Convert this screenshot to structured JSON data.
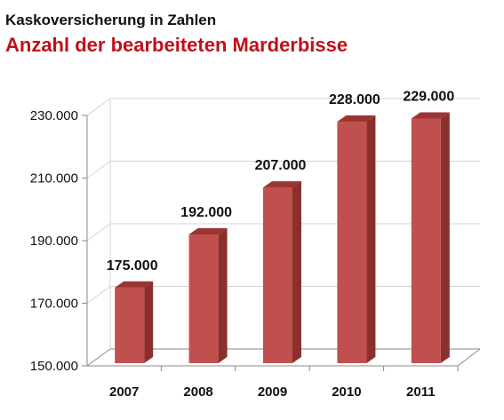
{
  "chart_data": {
    "type": "bar",
    "supertitle": "Kaskoversicherung in Zahlen",
    "title": "Anzahl der bearbeiteten Marderbisse",
    "categories": [
      "2007",
      "2008",
      "2009",
      "2010",
      "2011"
    ],
    "values": [
      175000,
      192000,
      207000,
      228000,
      229000
    ],
    "data_labels": [
      "175.000",
      "192.000",
      "207.000",
      "228.000",
      "229.000"
    ],
    "yticks": [
      150000,
      170000,
      190000,
      210000,
      230000
    ],
    "ytick_labels": [
      "150.000",
      "170.000",
      "190.000",
      "210.000",
      "230.000"
    ],
    "ylim": [
      150000,
      230000
    ],
    "xlabel": "",
    "ylabel": "",
    "grid": true,
    "legend": "none",
    "style": "3d-column",
    "colors": {
      "bar_front": "#c0504d",
      "bar_side": "#8b2f2d",
      "bar_top": "#9b3432",
      "title": "#c0101a"
    }
  }
}
